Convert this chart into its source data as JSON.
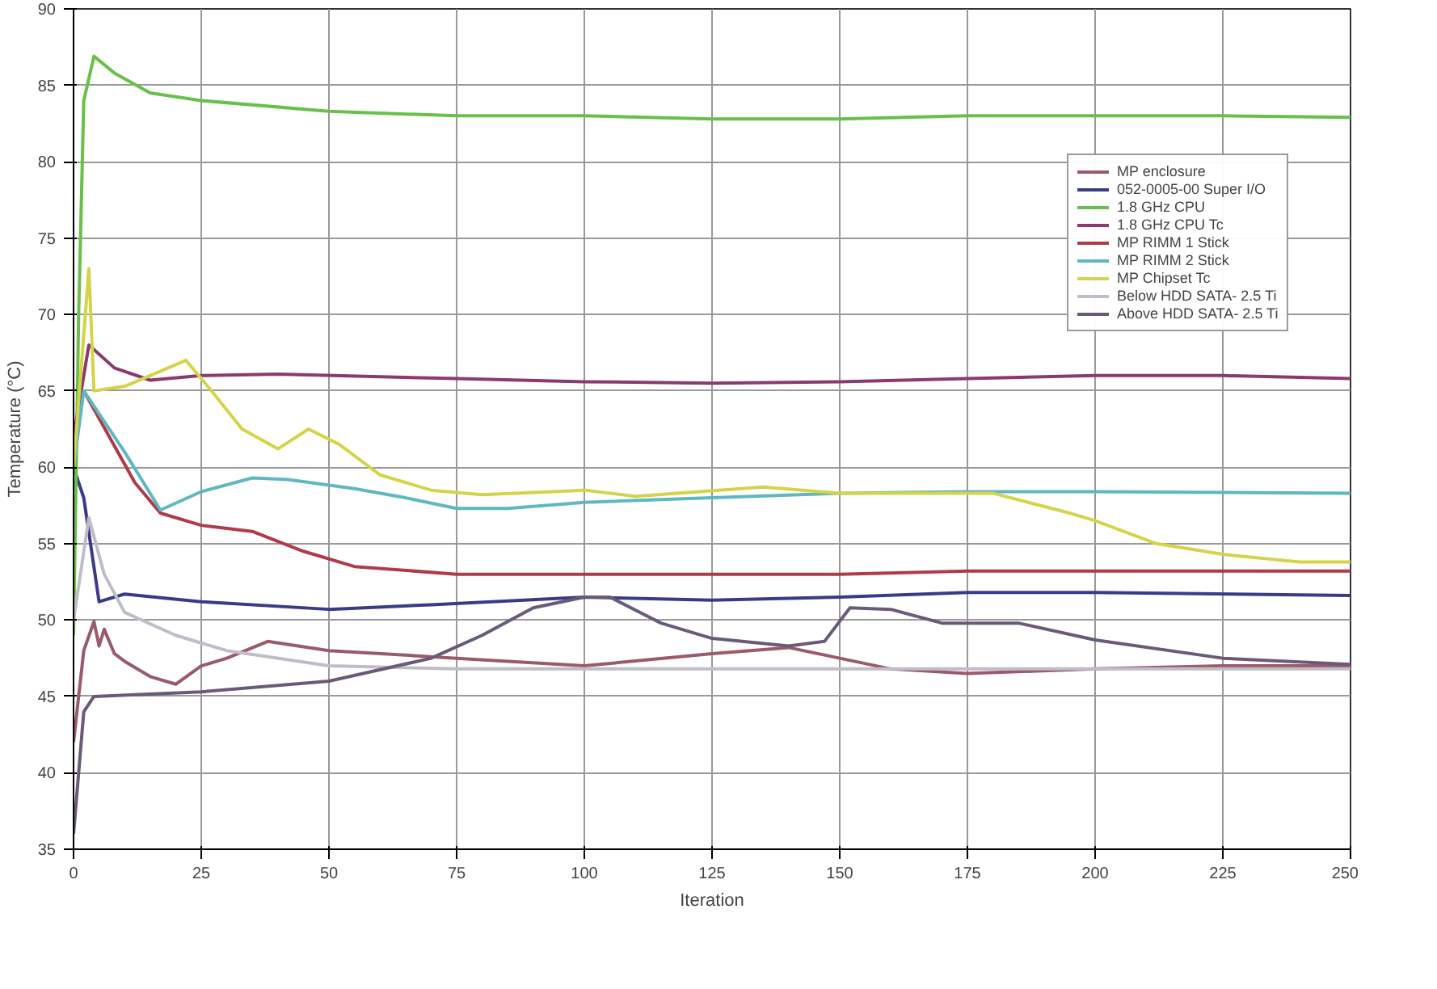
{
  "chart_data": {
    "type": "line",
    "xlabel": "Iteration",
    "ylabel": "Temperature (°C)",
    "xlim": [
      0,
      250
    ],
    "xticks": [
      0,
      25,
      50,
      75,
      100,
      125,
      150,
      175,
      200,
      225,
      250
    ],
    "ylim": [
      35,
      90
    ],
    "yticks": [
      35,
      40,
      45,
      50,
      55,
      60,
      65,
      70,
      75,
      80,
      85,
      90
    ],
    "grid": true,
    "legend": "top right",
    "marker": "none",
    "line_style": "solid",
    "series": [
      {
        "name": "MP enclosure",
        "color": "#9a5a6a",
        "x": [
          0,
          2,
          4,
          5,
          6,
          8,
          10,
          15,
          20,
          25,
          30,
          38,
          50,
          75,
          100,
          125,
          140,
          150,
          160,
          175,
          200,
          225,
          250
        ],
        "values": [
          42,
          48,
          49.9,
          48.3,
          49.4,
          47.8,
          47.3,
          46.3,
          45.8,
          47,
          47.5,
          48.6,
          48,
          47.5,
          47,
          47.8,
          48.2,
          47.5,
          46.8,
          46.5,
          46.8,
          47,
          47
        ]
      },
      {
        "name": "052-0005-00 Super I/O",
        "color": "#3a3a8a",
        "x": [
          0,
          2,
          5,
          10,
          25,
          50,
          70,
          100,
          125,
          150,
          175,
          200,
          250
        ],
        "values": [
          60,
          58,
          51.2,
          51.7,
          51.2,
          50.7,
          51,
          51.5,
          51.3,
          51.5,
          51.8,
          51.8,
          51.6
        ]
      },
      {
        "name": "1.8 GHz CPU",
        "color": "#6abf4b",
        "x": [
          0,
          1,
          2,
          4,
          8,
          15,
          25,
          50,
          75,
          100,
          125,
          150,
          175,
          200,
          225,
          250
        ],
        "values": [
          49,
          70,
          84,
          86.9,
          85.8,
          84.5,
          84,
          83.3,
          83,
          83,
          82.8,
          82.8,
          83,
          83,
          83,
          82.9
        ]
      },
      {
        "name": "1.8 GHz CPU Tc",
        "color": "#8b3a6e",
        "x": [
          0,
          3,
          8,
          15,
          25,
          40,
          75,
          100,
          125,
          150,
          175,
          200,
          225,
          250
        ],
        "values": [
          62,
          68,
          66.5,
          65.7,
          66,
          66.1,
          65.8,
          65.6,
          65.5,
          65.6,
          65.8,
          66,
          66,
          65.8
        ]
      },
      {
        "name": "MP RIMM 1 Stick",
        "color": "#b03a4a",
        "x": [
          2,
          7,
          12,
          17,
          25,
          35,
          45,
          55,
          75,
          100,
          150,
          175,
          250
        ],
        "values": [
          65,
          62,
          59,
          57,
          56.2,
          55.8,
          54.5,
          53.5,
          53,
          53,
          53,
          53.2,
          53.2
        ]
      },
      {
        "name": "MP RIMM 2 Stick",
        "color": "#5fb8c0",
        "x": [
          0,
          2,
          10,
          17,
          25,
          35,
          42,
          55,
          65,
          75,
          85,
          100,
          125,
          150,
          175,
          200,
          250
        ],
        "values": [
          60,
          65,
          61,
          57.2,
          58.4,
          59.3,
          59.2,
          58.6,
          58,
          57.3,
          57.3,
          57.7,
          58,
          58.3,
          58.4,
          58.4,
          58.3
        ]
      },
      {
        "name": "MP Chipset Tc",
        "color": "#d4d44a",
        "x": [
          0,
          3,
          4,
          10,
          15,
          22,
          27,
          33,
          40,
          46,
          52,
          60,
          70,
          80,
          100,
          110,
          135,
          150,
          180,
          195,
          200,
          212,
          225,
          240,
          250
        ],
        "values": [
          60,
          73,
          65,
          65.3,
          66,
          67,
          65,
          62.5,
          61.2,
          62.5,
          61.5,
          59.5,
          58.5,
          58.2,
          58.5,
          58.1,
          58.7,
          58.3,
          58.3,
          57,
          56.5,
          55,
          54.3,
          53.8,
          53.8
        ]
      },
      {
        "name": "Below HDD SATA- 2.5 Ti",
        "color": "#c0bcc8",
        "x": [
          0,
          3,
          6,
          10,
          20,
          30,
          50,
          75,
          100,
          150,
          200,
          250
        ],
        "values": [
          50,
          56.7,
          53,
          50.5,
          49,
          48,
          47,
          46.8,
          46.8,
          46.8,
          46.8,
          46.8
        ]
      },
      {
        "name": "Above HDD SATA- 2.5 Ti",
        "color": "#6a5a7a",
        "x": [
          0,
          2,
          4,
          25,
          50,
          70,
          80,
          90,
          100,
          105,
          115,
          125,
          140,
          147,
          152,
          160,
          170,
          185,
          200,
          225,
          250
        ],
        "values": [
          36,
          44,
          45,
          45.3,
          46,
          47.5,
          49,
          50.8,
          51.5,
          51.5,
          49.8,
          48.8,
          48.3,
          48.6,
          50.8,
          50.7,
          49.8,
          49.8,
          48.7,
          47.5,
          47.1
        ]
      }
    ]
  }
}
